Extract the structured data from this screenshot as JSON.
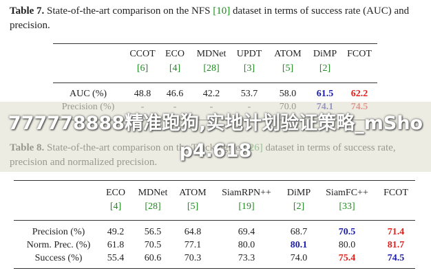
{
  "tables": [
    {
      "caption": {
        "label": "Table 7.",
        "before": "State-of-the-art comparison on the NFS",
        "ref": "[10]",
        "after": "dataset in terms of success rate (AUC) and precision."
      },
      "columns": [
        {
          "name": "CCOT",
          "ref": "[6]"
        },
        {
          "name": "ECO",
          "ref": "[4]"
        },
        {
          "name": "MDNet",
          "ref": "[28]"
        },
        {
          "name": "UPDT",
          "ref": "[3]"
        },
        {
          "name": "ATOM",
          "ref": "[5]"
        },
        {
          "name": "DiMP",
          "ref": "[2]"
        },
        {
          "name": "FCOT",
          "ref": null
        }
      ],
      "rows": [
        {
          "label": "AUC (%)",
          "values": [
            "48.8",
            "46.6",
            "42.2",
            "53.7",
            "58.0",
            "61.5",
            "62.2"
          ],
          "best": 6,
          "second": 5
        },
        {
          "label": "Precision (%)",
          "values": [
            "-",
            "-",
            "-",
            "-",
            "70.0",
            "74.1",
            "74.5"
          ],
          "best": 6,
          "second": 5
        }
      ]
    },
    {
      "caption": {
        "label": "Table 8.",
        "before": "State-of-the-art comparison on the TrackingNet",
        "ref": "[26]",
        "after": "dataset in terms of success rate, precision and normalized precision."
      },
      "columns": [
        {
          "name": "ECO",
          "ref": "[4]"
        },
        {
          "name": "MDNet",
          "ref": "[28]"
        },
        {
          "name": "ATOM",
          "ref": "[5]"
        },
        {
          "name": "SiamRPN++",
          "ref": "[19]"
        },
        {
          "name": "DiMP",
          "ref": "[2]"
        },
        {
          "name": "SiamFC++",
          "ref": "[33]"
        },
        {
          "name": "FCOT",
          "ref": null
        }
      ],
      "rows": [
        {
          "label": "Precision (%)",
          "values": [
            "49.2",
            "56.5",
            "64.8",
            "69.4",
            "68.7",
            "70.5",
            "71.4"
          ],
          "best": 6,
          "second": 5
        },
        {
          "label": "Norm. Prec. (%)",
          "values": [
            "61.8",
            "70.5",
            "77.1",
            "80.0",
            "80.1",
            "80.0",
            "81.7"
          ],
          "best": 6,
          "second": 4
        },
        {
          "label": "Success (%)",
          "values": [
            "55.4",
            "60.6",
            "70.3",
            "73.3",
            "74.0",
            "75.4",
            "74.5"
          ],
          "best": 5,
          "second": 6
        }
      ]
    }
  ],
  "best_color": "#e3201b",
  "second_color": "#1c1ca8",
  "ref_color": "#1f8a1f",
  "watermark": "777778888精准跑狗,实地计划验证策略_mShop4.618"
}
